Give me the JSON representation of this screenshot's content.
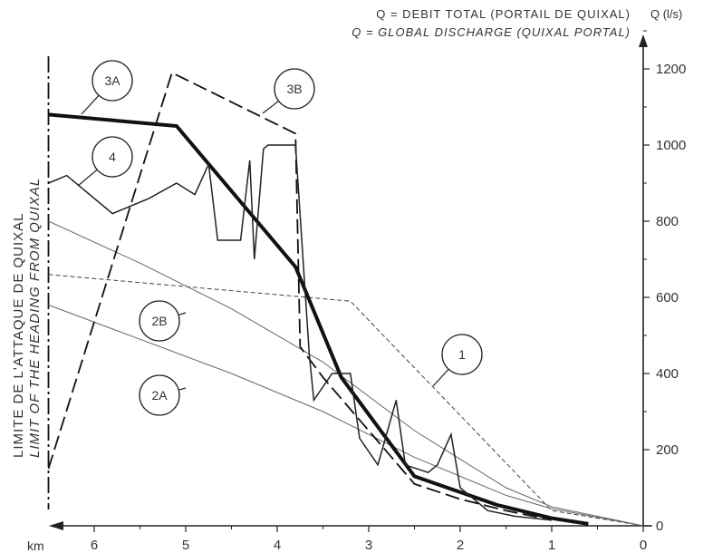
{
  "chart_data": {
    "type": "line",
    "title": [
      "Q = DEBIT TOTAL (PORTAIL DE QUIXAL)",
      "Q = GLOBAL DISCHARGE (QUIXAL PORTAL)"
    ],
    "ylabel": "Q (l/s)",
    "xlabel": "km",
    "x_reversed": true,
    "xlim": [
      0,
      6.5
    ],
    "ylim": [
      0,
      1250
    ],
    "xticks": [
      6,
      5,
      4,
      3,
      2,
      1,
      0
    ],
    "yticks": [
      0,
      200,
      400,
      600,
      800,
      1000,
      1200
    ],
    "grid": false,
    "limit_marker": {
      "x": 6.5,
      "label": [
        "LIMITE DE L'ATTAQUE DE QUIXAL",
        "LIMIT OF THE HEADING FROM QUIXAL"
      ]
    },
    "series": [
      {
        "name": "1",
        "style": "dashed-fine",
        "points": [
          [
            6.5,
            660
          ],
          [
            3.2,
            590
          ],
          [
            1.0,
            40
          ],
          [
            0,
            0
          ]
        ]
      },
      {
        "name": "2A",
        "style": "thin",
        "points": [
          [
            6.5,
            580
          ],
          [
            5.5,
            490
          ],
          [
            4.5,
            400
          ],
          [
            3.5,
            300
          ],
          [
            2.5,
            180
          ],
          [
            1.5,
            80
          ],
          [
            1.0,
            45
          ],
          [
            0,
            0
          ]
        ]
      },
      {
        "name": "2B",
        "style": "thin",
        "points": [
          [
            6.5,
            800
          ],
          [
            5.5,
            690
          ],
          [
            4.5,
            570
          ],
          [
            3.5,
            430
          ],
          [
            2.5,
            250
          ],
          [
            1.5,
            100
          ],
          [
            1.0,
            50
          ],
          [
            0,
            0
          ]
        ]
      },
      {
        "name": "3A",
        "style": "thick",
        "points": [
          [
            6.5,
            1080
          ],
          [
            5.1,
            1050
          ],
          [
            3.8,
            680
          ],
          [
            3.3,
            390
          ],
          [
            2.5,
            130
          ],
          [
            1.6,
            55
          ],
          [
            1.0,
            20
          ],
          [
            0.6,
            5
          ]
        ]
      },
      {
        "name": "3B",
        "style": "dashed",
        "points": [
          [
            6.5,
            150
          ],
          [
            5.15,
            1190
          ],
          [
            3.8,
            1030
          ],
          [
            3.75,
            470
          ],
          [
            3.5,
            390
          ],
          [
            3.0,
            250
          ],
          [
            2.5,
            110
          ],
          [
            2.0,
            70
          ],
          [
            1.5,
            40
          ],
          [
            1.0,
            15
          ]
        ]
      },
      {
        "name": "4",
        "style": "medium",
        "points": [
          [
            6.5,
            900
          ],
          [
            6.3,
            920
          ],
          [
            5.8,
            820
          ],
          [
            5.4,
            860
          ],
          [
            5.1,
            900
          ],
          [
            4.9,
            870
          ],
          [
            4.75,
            950
          ],
          [
            4.65,
            750
          ],
          [
            4.4,
            750
          ],
          [
            4.3,
            960
          ],
          [
            4.25,
            700
          ],
          [
            4.15,
            990
          ],
          [
            4.1,
            1000
          ],
          [
            3.85,
            1000
          ],
          [
            3.8,
            1000
          ],
          [
            3.65,
            450
          ],
          [
            3.6,
            330
          ],
          [
            3.4,
            400
          ],
          [
            3.2,
            400
          ],
          [
            3.1,
            230
          ],
          [
            2.9,
            160
          ],
          [
            2.7,
            330
          ],
          [
            2.6,
            160
          ],
          [
            2.35,
            140
          ],
          [
            2.25,
            160
          ],
          [
            2.1,
            240
          ],
          [
            2.0,
            100
          ],
          [
            1.7,
            40
          ],
          [
            1.4,
            25
          ],
          [
            1.0,
            15
          ]
        ]
      }
    ]
  }
}
